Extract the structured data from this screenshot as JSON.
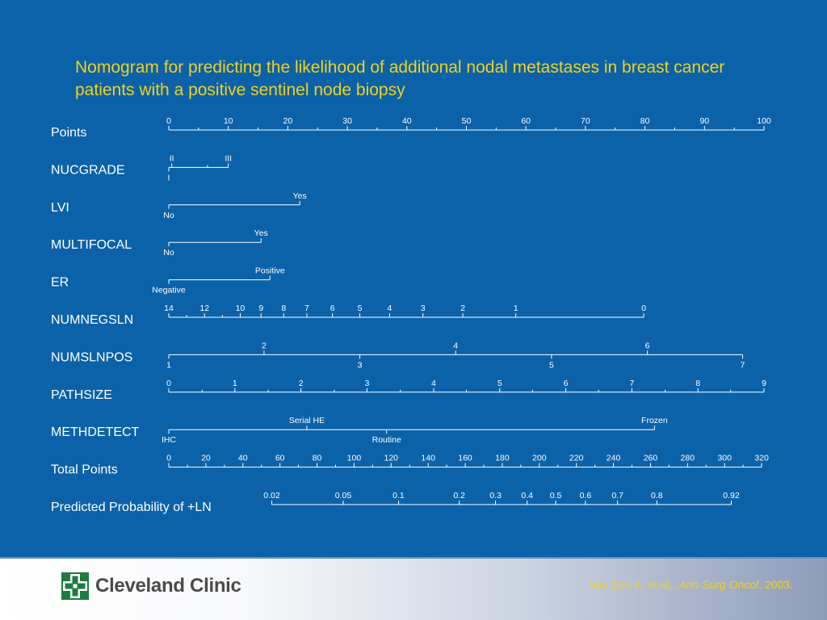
{
  "title": "Nomogram for predicting the likelihood of additional nodal metastases in breast cancer patients with a positive sentinel node biopsy",
  "footer": {
    "logo_text": "Cleveland Clinic",
    "citation_authors": "Van Zee K, et al., ",
    "citation_journal": "Ann Surg Oncol",
    "citation_year": ", 2003."
  },
  "colors": {
    "background": "#0b62a9",
    "title": "#f0d21a",
    "lines": "#ffffff",
    "logo_green": "#1e7b3f"
  },
  "nomogram": {
    "scale_min": 0,
    "scale_max": 100,
    "rows": [
      {
        "label": "Points",
        "ticks": [
          {
            "v": 0,
            "t": "0"
          },
          {
            "v": 10,
            "t": "10"
          },
          {
            "v": 20,
            "t": "20"
          },
          {
            "v": 30,
            "t": "30"
          },
          {
            "v": 40,
            "t": "40"
          },
          {
            "v": 50,
            "t": "50"
          },
          {
            "v": 60,
            "t": "60"
          },
          {
            "v": 70,
            "t": "70"
          },
          {
            "v": 80,
            "t": "80"
          },
          {
            "v": 90,
            "t": "90"
          },
          {
            "v": 100,
            "t": "100"
          }
        ],
        "minor": [
          5,
          15,
          25,
          35,
          45,
          55,
          65,
          75,
          85,
          95
        ]
      },
      {
        "label": "NUCGRADE",
        "ticks": [
          {
            "v": 0,
            "t": "I",
            "pos": "below"
          },
          {
            "v": 0.5,
            "t": "II",
            "pos": "above"
          },
          {
            "v": 10,
            "t": "III",
            "pos": "above"
          }
        ],
        "minor": [
          6.5
        ]
      },
      {
        "label": "LVI",
        "ticks": [
          {
            "v": 0,
            "t": "No",
            "pos": "below"
          },
          {
            "v": 22,
            "t": "Yes",
            "pos": "above"
          }
        ]
      },
      {
        "label": "MULTIFOCAL",
        "ticks": [
          {
            "v": 0,
            "t": "No",
            "pos": "below"
          },
          {
            "v": 15.5,
            "t": "Yes",
            "pos": "above"
          }
        ]
      },
      {
        "label": "ER",
        "ticks": [
          {
            "v": 0,
            "t": "Negative",
            "pos": "below"
          },
          {
            "v": 17,
            "t": "Positive",
            "pos": "above"
          }
        ]
      },
      {
        "label": "NUMNEGSLN",
        "ticks": [
          {
            "v": 0,
            "t": "14"
          },
          {
            "v": 6,
            "t": "12"
          },
          {
            "v": 12,
            "t": "10"
          },
          {
            "v": 15.5,
            "t": "9"
          },
          {
            "v": 19.3,
            "t": "8"
          },
          {
            "v": 23.2,
            "t": "7"
          },
          {
            "v": 27.5,
            "t": "6"
          },
          {
            "v": 32.1,
            "t": "5"
          },
          {
            "v": 37.1,
            "t": "4"
          },
          {
            "v": 42.7,
            "t": "3"
          },
          {
            "v": 49.4,
            "t": "2"
          },
          {
            "v": 58.3,
            "t": "1"
          },
          {
            "v": 79.8,
            "t": "0"
          }
        ],
        "minor": [
          3,
          9
        ]
      },
      {
        "label": "NUMSLNPOS",
        "ticks": [
          {
            "v": 0,
            "t": "1",
            "pos": "below"
          },
          {
            "v": 16,
            "t": "2",
            "pos": "above"
          },
          {
            "v": 32.1,
            "t": "3",
            "pos": "below"
          },
          {
            "v": 48.2,
            "t": "4",
            "pos": "above"
          },
          {
            "v": 64.3,
            "t": "5",
            "pos": "below"
          },
          {
            "v": 80.4,
            "t": "6",
            "pos": "above"
          },
          {
            "v": 96.4,
            "t": "7",
            "pos": "below"
          }
        ]
      },
      {
        "label": "PATHSIZE",
        "ticks": [
          {
            "v": 0,
            "t": "0"
          },
          {
            "v": 11.1,
            "t": "1"
          },
          {
            "v": 22.2,
            "t": "2"
          },
          {
            "v": 33.3,
            "t": "3"
          },
          {
            "v": 44.5,
            "t": "4"
          },
          {
            "v": 55.6,
            "t": "5"
          },
          {
            "v": 66.7,
            "t": "6"
          },
          {
            "v": 77.8,
            "t": "7"
          },
          {
            "v": 88.9,
            "t": "8"
          },
          {
            "v": 100,
            "t": "9"
          }
        ],
        "minor": [
          5.6,
          16.7,
          27.8,
          38.9,
          50,
          61.1,
          72.2,
          83.4,
          94.4
        ]
      },
      {
        "label": "METHDETECT",
        "ticks": [
          {
            "v": 0,
            "t": "IHC",
            "pos": "below"
          },
          {
            "v": 23.2,
            "t": "Serial HE",
            "pos": "above"
          },
          {
            "v": 36.6,
            "t": "Routine",
            "pos": "below"
          },
          {
            "v": 81.6,
            "t": "Frozen",
            "pos": "above"
          }
        ]
      },
      {
        "label": "Total Points",
        "ticks": [
          {
            "v": 0,
            "t": "0"
          },
          {
            "v": 6.23,
            "t": "20"
          },
          {
            "v": 12.45,
            "t": "40"
          },
          {
            "v": 18.68,
            "t": "60"
          },
          {
            "v": 24.9,
            "t": "80"
          },
          {
            "v": 31.13,
            "t": "100"
          },
          {
            "v": 37.35,
            "t": "120"
          },
          {
            "v": 43.58,
            "t": "140"
          },
          {
            "v": 49.8,
            "t": "160"
          },
          {
            "v": 56.03,
            "t": "180"
          },
          {
            "v": 62.25,
            "t": "200"
          },
          {
            "v": 68.48,
            "t": "220"
          },
          {
            "v": 74.7,
            "t": "240"
          },
          {
            "v": 80.93,
            "t": "260"
          },
          {
            "v": 87.15,
            "t": "280"
          },
          {
            "v": 93.38,
            "t": "300"
          },
          {
            "v": 99.6,
            "t": "320"
          }
        ],
        "minor": [
          3.11,
          9.34,
          15.57,
          21.79,
          28.02,
          34.24,
          40.47,
          46.69,
          52.92,
          59.14,
          65.37,
          71.59,
          77.82,
          84.04,
          90.27,
          96.49
        ]
      },
      {
        "label": "Predicted Probability of +LN",
        "ticks": [
          {
            "v": 17.3,
            "t": "0.02"
          },
          {
            "v": 29.3,
            "t": "0.05"
          },
          {
            "v": 38.6,
            "t": "0.1"
          },
          {
            "v": 48.8,
            "t": "0.2"
          },
          {
            "v": 54.9,
            "t": "0.3"
          },
          {
            "v": 60.2,
            "t": "0.4"
          },
          {
            "v": 65,
            "t": "0.5"
          },
          {
            "v": 70,
            "t": "0.6"
          },
          {
            "v": 75.4,
            "t": "0.7"
          },
          {
            "v": 82,
            "t": "0.8"
          },
          {
            "v": 94.5,
            "t": "0.92"
          }
        ]
      }
    ]
  }
}
